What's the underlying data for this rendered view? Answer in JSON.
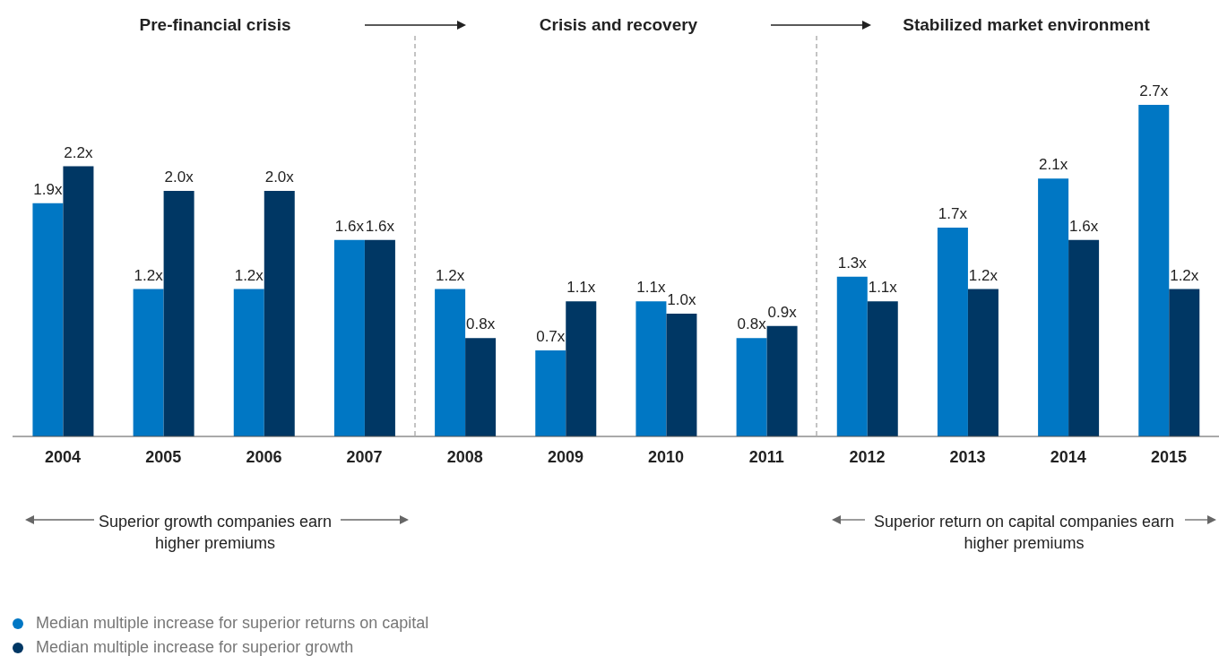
{
  "chart_data": {
    "type": "bar",
    "categories": [
      "2004",
      "2005",
      "2006",
      "2007",
      "2008",
      "2009",
      "2010",
      "2011",
      "2012",
      "2013",
      "2014",
      "2015"
    ],
    "series": [
      {
        "name": "Median multiple increase for superior returns on capital",
        "color": "#0077c4",
        "values": [
          1.9,
          1.2,
          1.2,
          1.6,
          1.2,
          0.7,
          1.1,
          0.8,
          1.3,
          1.7,
          2.1,
          2.7
        ],
        "value_labels": [
          "1.9x",
          "1.2x",
          "1.2x",
          "1.6x",
          "1.2x",
          "0.7x",
          "1.1x",
          "0.8x",
          "1.3x",
          "1.7x",
          "2.1x",
          "2.7x"
        ]
      },
      {
        "name": "Median multiple increase for superior growth",
        "color": "#003764",
        "values": [
          2.2,
          2.0,
          2.0,
          1.6,
          0.8,
          1.1,
          1.0,
          0.9,
          1.1,
          1.2,
          1.6,
          1.2
        ],
        "value_labels": [
          "2.2x",
          "2.0x",
          "2.0x",
          "1.6x",
          "0.8x",
          "1.1x",
          "1.0x",
          "0.9x",
          "1.1x",
          "1.2x",
          "1.6x",
          "1.2x"
        ]
      }
    ],
    "annotations": [
      "Pre-financial crisis",
      "Crisis and recovery",
      "Stabilized market environment",
      "Superior growth companies earn higher premiums",
      "Superior return on capital companies earn higher premiums"
    ],
    "legend": "bottom left"
  }
}
